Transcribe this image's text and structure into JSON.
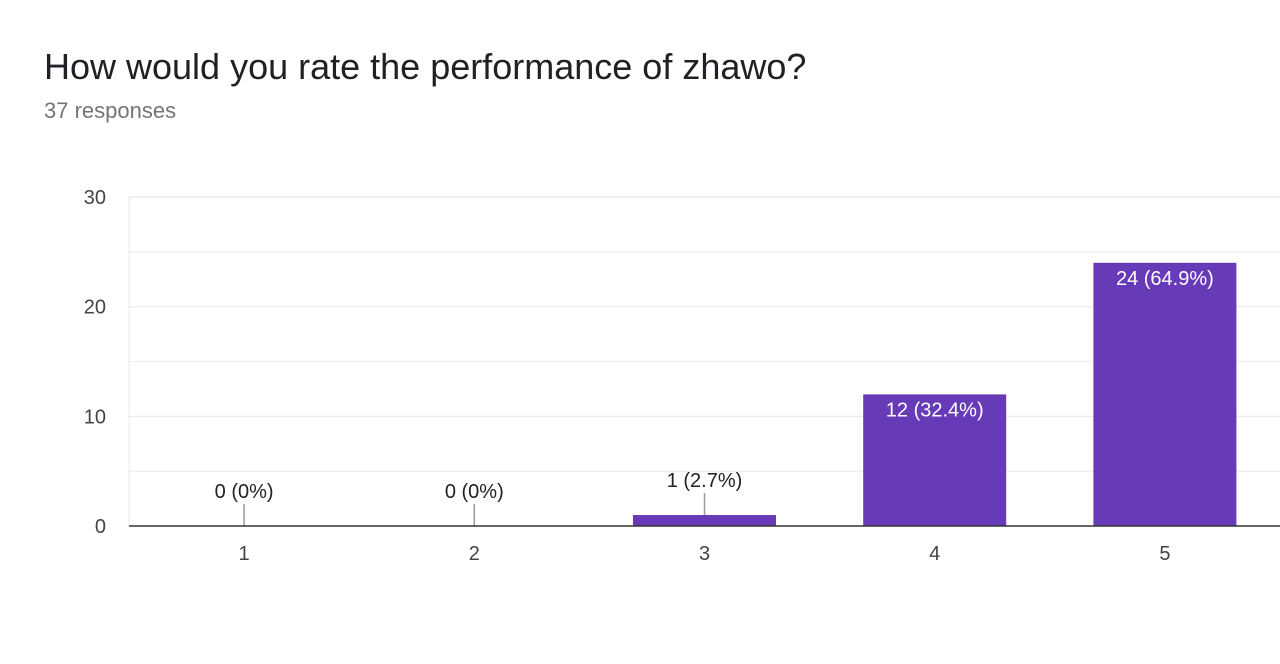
{
  "header": {
    "title": "How would you rate the performance of zhawo?",
    "subtitle": "37 responses"
  },
  "colors": {
    "bar": "#673ab7",
    "grid": "#e8e8e8",
    "axis": "#333333",
    "label_inside": "#ffffff",
    "label_outside": "#222222"
  },
  "chart_data": {
    "type": "bar",
    "categories": [
      "1",
      "2",
      "3",
      "4",
      "5"
    ],
    "values": [
      0,
      0,
      1,
      12,
      24
    ],
    "data_labels": [
      "0 (0%)",
      "0 (0%)",
      "1 (2.7%)",
      "12 (32.4%)",
      "24 (64.9%)"
    ],
    "ylim": [
      0,
      30
    ],
    "y_ticks": [
      "0",
      "10",
      "20",
      "30"
    ],
    "grid": true,
    "legend": "none",
    "xlabel": "",
    "ylabel": ""
  }
}
